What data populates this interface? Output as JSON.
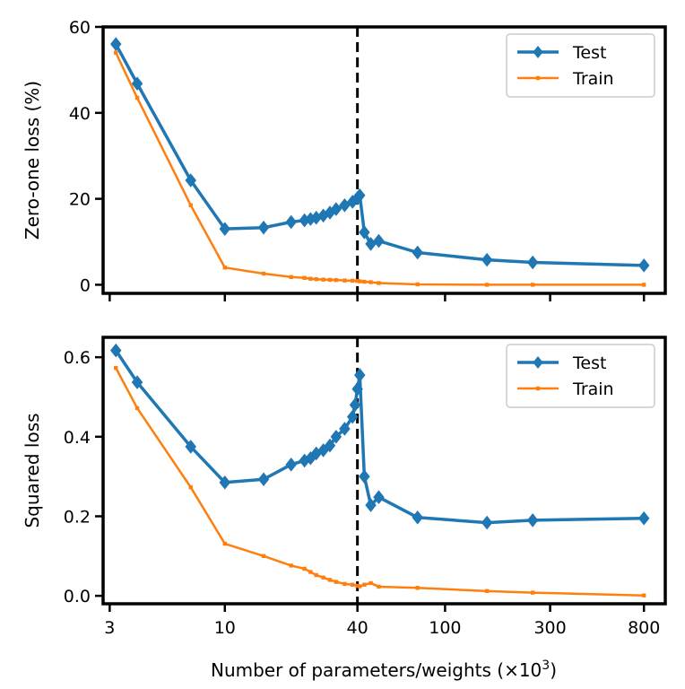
{
  "chart_data": [
    {
      "type": "line",
      "ylabel": "Zero-one loss (%)",
      "xlabel": "",
      "x_scale": "log",
      "xlim": [
        2.8,
        1000
      ],
      "ylim": [
        -2,
        60
      ],
      "yticks": [
        0,
        20,
        40,
        60
      ],
      "xticks": [
        3,
        10,
        40,
        100,
        300,
        800
      ],
      "xtick_labels": [],
      "vline_x": 40,
      "legend": {
        "position": "top-right",
        "entries": [
          "Test",
          "Train"
        ]
      },
      "series": [
        {
          "name": "Test",
          "color": "#1f77b4",
          "marker": "diamond",
          "points": [
            [
              3.2,
              56.0
            ],
            [
              4.0,
              46.8
            ],
            [
              7.0,
              24.3
            ],
            [
              10.0,
              13.0
            ],
            [
              15.0,
              13.3
            ],
            [
              20.0,
              14.6
            ],
            [
              23.0,
              15.0
            ],
            [
              24.5,
              15.3
            ],
            [
              26.0,
              15.6
            ],
            [
              28.0,
              16.1
            ],
            [
              30.0,
              16.8
            ],
            [
              32.0,
              17.6
            ],
            [
              35.0,
              18.5
            ],
            [
              38.0,
              19.3
            ],
            [
              40.0,
              20.2
            ],
            [
              41.0,
              20.8
            ],
            [
              43.0,
              12.2
            ],
            [
              46.0,
              9.5
            ],
            [
              50.0,
              10.2
            ],
            [
              75.0,
              7.5
            ],
            [
              155.0,
              5.8
            ],
            [
              250.0,
              5.2
            ],
            [
              800.0,
              4.5
            ]
          ]
        },
        {
          "name": "Train",
          "color": "#ff7f0e",
          "marker": "square",
          "points": [
            [
              3.2,
              54.0
            ],
            [
              4.0,
              43.5
            ],
            [
              7.0,
              18.5
            ],
            [
              10.0,
              4.0
            ],
            [
              15.0,
              2.6
            ],
            [
              20.0,
              1.8
            ],
            [
              23.0,
              1.6
            ],
            [
              24.5,
              1.4
            ],
            [
              26.0,
              1.3
            ],
            [
              28.0,
              1.2
            ],
            [
              30.0,
              1.15
            ],
            [
              32.0,
              1.1
            ],
            [
              35.0,
              1.0
            ],
            [
              38.0,
              0.95
            ],
            [
              40.0,
              0.9
            ],
            [
              41.0,
              0.8
            ],
            [
              43.0,
              0.7
            ],
            [
              46.0,
              0.6
            ],
            [
              50.0,
              0.4
            ],
            [
              75.0,
              0.1
            ],
            [
              155.0,
              0.0
            ],
            [
              250.0,
              0.0
            ],
            [
              800.0,
              0.0
            ]
          ]
        }
      ]
    },
    {
      "type": "line",
      "ylabel": "Squared loss",
      "xlabel": "Number of parameters/weights (×10",
      "xlabel_sup": "3",
      "xlabel_end": ")",
      "x_scale": "log",
      "xlim": [
        2.8,
        1000
      ],
      "ylim": [
        -0.02,
        0.65
      ],
      "yticks": [
        0.0,
        0.2,
        0.4,
        0.6
      ],
      "ytick_labels": [
        "0.0",
        "0.2",
        "0.4",
        "0.6"
      ],
      "xticks": [
        3,
        10,
        40,
        100,
        300,
        800
      ],
      "xtick_labels": [
        "3",
        "10",
        "40",
        "100",
        "300",
        "800"
      ],
      "vline_x": 40,
      "legend": {
        "position": "top-right",
        "entries": [
          "Test",
          "Train"
        ]
      },
      "series": [
        {
          "name": "Test",
          "color": "#1f77b4",
          "marker": "diamond",
          "points": [
            [
              3.2,
              0.617
            ],
            [
              4.0,
              0.537
            ],
            [
              7.0,
              0.375
            ],
            [
              10.0,
              0.285
            ],
            [
              15.0,
              0.293
            ],
            [
              20.0,
              0.33
            ],
            [
              23.0,
              0.34
            ],
            [
              24.5,
              0.346
            ],
            [
              26.0,
              0.358
            ],
            [
              28.0,
              0.366
            ],
            [
              30.0,
              0.378
            ],
            [
              32.0,
              0.4
            ],
            [
              35.0,
              0.42
            ],
            [
              38.0,
              0.45
            ],
            [
              39.0,
              0.48
            ],
            [
              40.0,
              0.52
            ],
            [
              41.0,
              0.555
            ],
            [
              43.0,
              0.3
            ],
            [
              46.0,
              0.228
            ],
            [
              50.0,
              0.248
            ],
            [
              75.0,
              0.197
            ],
            [
              155.0,
              0.184
            ],
            [
              250.0,
              0.19
            ],
            [
              800.0,
              0.195
            ]
          ]
        },
        {
          "name": "Train",
          "color": "#ff7f0e",
          "marker": "square",
          "points": [
            [
              3.2,
              0.573
            ],
            [
              4.0,
              0.472
            ],
            [
              7.0,
              0.273
            ],
            [
              10.0,
              0.131
            ],
            [
              15.0,
              0.1
            ],
            [
              20.0,
              0.076
            ],
            [
              23.0,
              0.068
            ],
            [
              24.5,
              0.06
            ],
            [
              26.0,
              0.052
            ],
            [
              28.0,
              0.046
            ],
            [
              30.0,
              0.04
            ],
            [
              32.0,
              0.035
            ],
            [
              35.0,
              0.03
            ],
            [
              38.0,
              0.028
            ],
            [
              40.0,
              0.025
            ],
            [
              41.0,
              0.024
            ],
            [
              43.0,
              0.028
            ],
            [
              46.0,
              0.032
            ],
            [
              50.0,
              0.023
            ],
            [
              75.0,
              0.02
            ],
            [
              155.0,
              0.012
            ],
            [
              250.0,
              0.008
            ],
            [
              800.0,
              0.001
            ]
          ]
        }
      ]
    }
  ]
}
